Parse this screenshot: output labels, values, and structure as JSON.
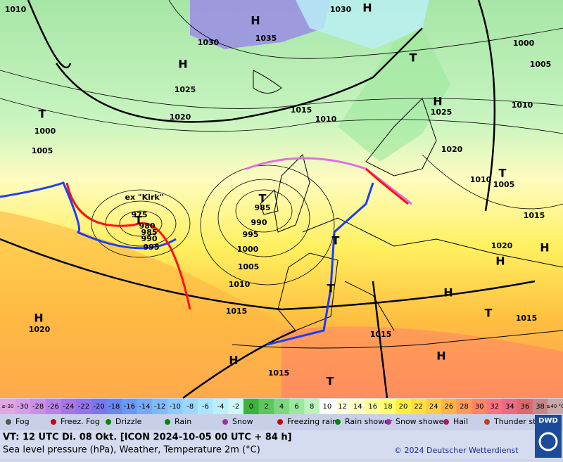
{
  "map": {
    "pressure_labels": [
      1010,
      1030,
      1030,
      1035,
      1000,
      1005,
      1025,
      1020,
      1015,
      1010,
      1025,
      1010,
      1020,
      1000,
      1005,
      1010,
      1005,
      1015,
      1020,
      985,
      990,
      995,
      1000,
      1005,
      1010,
      1015,
      975,
      980,
      985,
      990,
      995,
      1015,
      1015,
      1015,
      1020
    ],
    "centers": [
      "H",
      "H",
      "H",
      "H",
      "T",
      "T",
      "T",
      "H",
      "T",
      "T",
      "H",
      "H",
      "T",
      "H",
      "H",
      "T",
      "H",
      "T",
      "T"
    ],
    "annotation": "ex \"Kirk\""
  },
  "temperature_scale": [
    {
      "label": "≤-30",
      "color": "#e2a6e2"
    },
    {
      "label": "-30",
      "color": "#d69ee8"
    },
    {
      "label": "-28",
      "color": "#c890e6"
    },
    {
      "label": "-26",
      "color": "#b882e6"
    },
    {
      "label": "-24",
      "color": "#a676e8"
    },
    {
      "label": "-22",
      "color": "#9474ea"
    },
    {
      "label": "-20",
      "color": "#7a76ee"
    },
    {
      "label": "-18",
      "color": "#6a86f2"
    },
    {
      "label": "-16",
      "color": "#6a98f4"
    },
    {
      "label": "-14",
      "color": "#74aaf8"
    },
    {
      "label": "-12",
      "color": "#80baf8"
    },
    {
      "label": "-10",
      "color": "#8ecafc"
    },
    {
      "label": "-8",
      "color": "#9cd8fc"
    },
    {
      "label": "-6",
      "color": "#acE6fc"
    },
    {
      "label": "-4",
      "color": "#bcf0f8"
    },
    {
      "label": "-2",
      "color": "#cef8f0"
    },
    {
      "label": "0",
      "color": "#3cb43c"
    },
    {
      "label": "2",
      "color": "#5cc85c"
    },
    {
      "label": "4",
      "color": "#7cd87c"
    },
    {
      "label": "6",
      "color": "#9ce89c"
    },
    {
      "label": "8",
      "color": "#bcf4bc"
    },
    {
      "label": "10",
      "color": "#ffffff"
    },
    {
      "label": "12",
      "color": "#ffffe0"
    },
    {
      "label": "14",
      "color": "#ffffc4"
    },
    {
      "label": "16",
      "color": "#ffff9a"
    },
    {
      "label": "18",
      "color": "#ffff6c"
    },
    {
      "label": "20",
      "color": "#fff040"
    },
    {
      "label": "22",
      "color": "#ffe040"
    },
    {
      "label": "24",
      "color": "#ffcc40"
    },
    {
      "label": "26",
      "color": "#ffb444"
    },
    {
      "label": "28",
      "color": "#ff9a5a"
    },
    {
      "label": "30",
      "color": "#ff8464"
    },
    {
      "label": "32",
      "color": "#f87480"
    },
    {
      "label": "34",
      "color": "#ec6a84"
    },
    {
      "label": "36",
      "color": "#dc6a6a"
    },
    {
      "label": "38",
      "color": "#c48888"
    },
    {
      "label": "≥40 °C",
      "color": "#c8a8a8"
    }
  ],
  "weather_legend": [
    "Fog",
    "Freez. Fog",
    "Drizzle",
    "Rain",
    "Snow",
    "Freezing rain",
    "Rain shower",
    "Snow shower",
    "Hail",
    "Thunder storm"
  ],
  "footer": {
    "valid_time": "VT: 12 UTC Di.  08 Okt. [ICON 2024-10-05  00 UTC + 84 h]",
    "description": "Sea level pressure (hPa), Weather, Temperature 2m (°C)",
    "copyright": "© 2024 Deutscher Wetterdienst",
    "logo": "DWD"
  }
}
